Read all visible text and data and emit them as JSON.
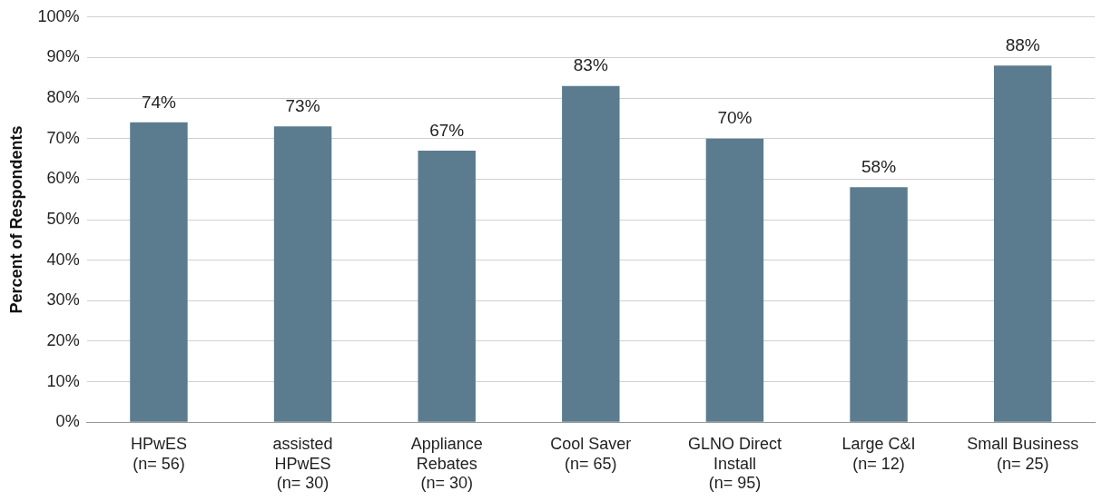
{
  "chart_data": {
    "type": "bar",
    "ylabel": "Percent of Respondents",
    "categories": [
      "HPwES\n(n= 56)",
      "assisted\nHPwES\n(n= 30)",
      "Appliance\nRebates\n(n= 30)",
      "Cool Saver\n(n= 65)",
      "GLNO Direct\nInstall\n(n= 95)",
      "Large C&I\n(n= 12)",
      "Small Business\n(n= 25)"
    ],
    "values": [
      74,
      73,
      67,
      83,
      70,
      58,
      88
    ],
    "color": "#5b7c8f",
    "value_labels": [
      "74%",
      "73%",
      "67%",
      "83%",
      "70%",
      "58%",
      "88%"
    ],
    "ylim": [
      0,
      100
    ],
    "yticks": [
      {
        "value": 0,
        "label": "0%"
      },
      {
        "value": 10,
        "label": "10%"
      },
      {
        "value": 20,
        "label": "20%"
      },
      {
        "value": 30,
        "label": "30%"
      },
      {
        "value": 40,
        "label": "40%"
      },
      {
        "value": 50,
        "label": "50%"
      },
      {
        "value": 60,
        "label": "60%"
      },
      {
        "value": 70,
        "label": "70%"
      },
      {
        "value": 80,
        "label": "80%"
      },
      {
        "value": 90,
        "label": "90%"
      },
      {
        "value": 100,
        "label": "100%"
      }
    ],
    "grid": "y",
    "legend": false
  }
}
